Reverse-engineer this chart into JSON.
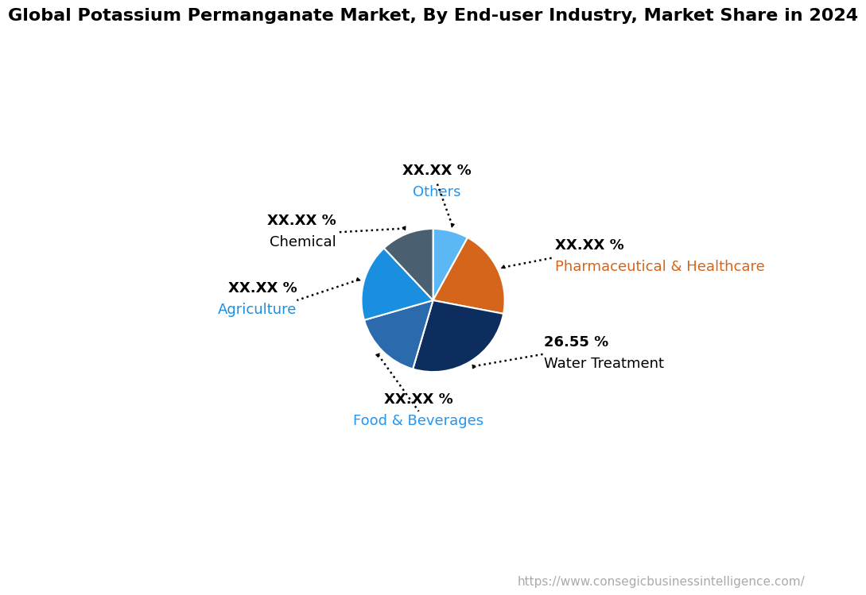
{
  "title": "Global Potassium Permanganate Market, By End-user Industry, Market Share in 2024",
  "segments": [
    {
      "label": "Others",
      "value": 8.0,
      "pct_text": "XX.XX %",
      "color": "#5bb8f5",
      "label_color": "#2196F3",
      "value_color": "#000000"
    },
    {
      "label": "Pharmaceutical & Healthcare",
      "value": 20.0,
      "pct_text": "XX.XX %",
      "color": "#d4651a",
      "label_color": "#d4651a",
      "value_color": "#000000"
    },
    {
      "label": "Water Treatment",
      "value": 26.55,
      "pct_text": "26.55 %",
      "color": "#0d2d5e",
      "label_color": "#000000",
      "value_color": "#000000"
    },
    {
      "label": "Food & Beverages",
      "value": 16.0,
      "pct_text": "XX.XX %",
      "color": "#2a6aad",
      "label_color": "#2196F3",
      "value_color": "#000000"
    },
    {
      "label": "Agriculture",
      "value": 17.45,
      "pct_text": "XX.XX %",
      "color": "#1a8fe0",
      "label_color": "#1a8fe0",
      "value_color": "#000000"
    },
    {
      "label": "Chemical",
      "value": 12.0,
      "pct_text": "XX.XX %",
      "color": "#4a6070",
      "label_color": "#000000",
      "value_color": "#000000"
    }
  ],
  "startangle": 90,
  "url_text": "https://www.consegicbusinessintelligence.com/",
  "background_color": "#ffffff",
  "title_fontsize": 16,
  "label_fontsize": 13,
  "value_fontsize": 13,
  "url_fontsize": 11
}
